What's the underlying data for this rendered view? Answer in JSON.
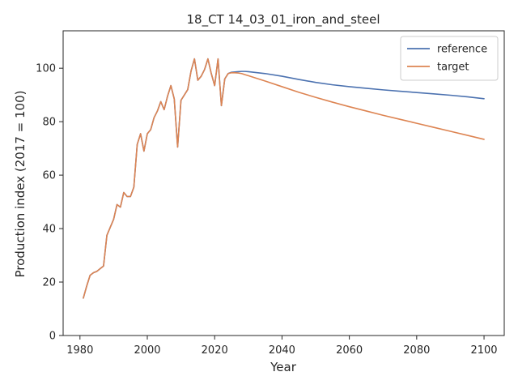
{
  "chart_data": {
    "type": "line",
    "title": "18_CT 14_03_01_iron_and_steel",
    "xlabel": "Year",
    "ylabel": "Production index (2017 = 100)",
    "xlim": [
      1975,
      2106
    ],
    "ylim": [
      0,
      114
    ],
    "xticks": [
      1980,
      2000,
      2020,
      2040,
      2060,
      2080,
      2100
    ],
    "yticks": [
      0,
      20,
      40,
      60,
      80,
      100
    ],
    "grid": false,
    "legend_position": "top-right",
    "series": [
      {
        "name": "reference",
        "color": "#4c72b0",
        "x": [
          1981,
          1982,
          1983,
          1984,
          1985,
          1986,
          1987,
          1988,
          1989,
          1990,
          1991,
          1992,
          1993,
          1994,
          1995,
          1996,
          1997,
          1998,
          1999,
          2000,
          2001,
          2002,
          2003,
          2004,
          2005,
          2006,
          2007,
          2008,
          2009,
          2010,
          2011,
          2012,
          2013,
          2014,
          2015,
          2016,
          2017,
          2018,
          2019,
          2020,
          2021,
          2022,
          2023,
          2024,
          2025,
          2026,
          2027,
          2028,
          2029,
          2030,
          2035,
          2040,
          2045,
          2050,
          2055,
          2060,
          2065,
          2070,
          2075,
          2080,
          2085,
          2090,
          2095,
          2100
        ],
        "y": [
          14,
          18.5,
          22.5,
          23.5,
          24,
          25,
          26,
          37.5,
          40.5,
          43.5,
          49,
          48,
          53.5,
          52,
          52,
          55.5,
          71.5,
          75.5,
          69,
          75.5,
          77,
          81.5,
          84,
          87.5,
          84.5,
          89.5,
          93.5,
          88.5,
          70.5,
          88,
          90,
          92,
          99,
          103.5,
          95.5,
          97,
          99.5,
          103.5,
          98,
          93.5,
          103.5,
          86,
          96,
          98,
          98.5,
          98.6,
          98.7,
          98.8,
          98.8,
          98.7,
          98,
          97,
          95.8,
          94.7,
          93.8,
          93.1,
          92.5,
          91.9,
          91.4,
          90.9,
          90.4,
          89.9,
          89.3,
          88.6
        ]
      },
      {
        "name": "target",
        "color": "#dd8452",
        "x": [
          1981,
          1982,
          1983,
          1984,
          1985,
          1986,
          1987,
          1988,
          1989,
          1990,
          1991,
          1992,
          1993,
          1994,
          1995,
          1996,
          1997,
          1998,
          1999,
          2000,
          2001,
          2002,
          2003,
          2004,
          2005,
          2006,
          2007,
          2008,
          2009,
          2010,
          2011,
          2012,
          2013,
          2014,
          2015,
          2016,
          2017,
          2018,
          2019,
          2020,
          2021,
          2022,
          2023,
          2024,
          2025,
          2026,
          2027,
          2028,
          2029,
          2030,
          2035,
          2040,
          2045,
          2050,
          2055,
          2060,
          2065,
          2070,
          2075,
          2080,
          2085,
          2090,
          2095,
          2100
        ],
        "y": [
          14,
          18.5,
          22.5,
          23.5,
          24,
          25,
          26,
          37.5,
          40.5,
          43.5,
          49,
          48,
          53.5,
          52,
          52,
          55.5,
          71.5,
          75.5,
          69,
          75.5,
          77,
          81.5,
          84,
          87.5,
          84.5,
          89.5,
          93.5,
          88.5,
          70.5,
          88,
          90,
          92,
          99,
          103.5,
          95.5,
          97,
          99.5,
          103.5,
          98,
          93.5,
          103.5,
          86,
          96,
          98,
          98.3,
          98.3,
          98.2,
          98,
          97.6,
          97.2,
          95.2,
          93.1,
          91,
          89.1,
          87.3,
          85.6,
          84,
          82.4,
          80.9,
          79.4,
          77.9,
          76.4,
          74.9,
          73.4
        ]
      }
    ]
  }
}
